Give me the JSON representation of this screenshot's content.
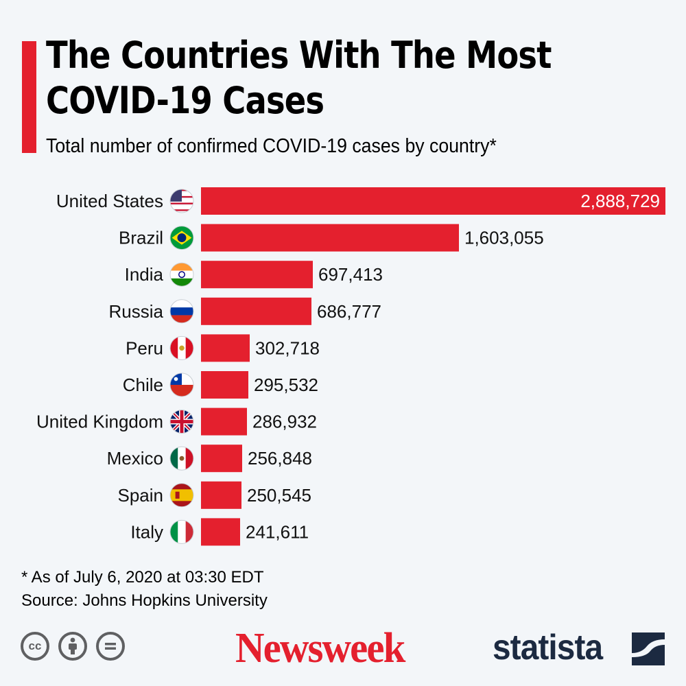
{
  "header": {
    "title": "The Countries With The Most\nCOVID-19 Cases",
    "subtitle": "Total number of confirmed COVID-19 cases by country*"
  },
  "colors": {
    "accent": "#e4202e",
    "background": "#f3f6f9",
    "navy": "#1c2a41"
  },
  "chart_data": {
    "type": "bar",
    "orientation": "horizontal",
    "title": "The Countries With The Most COVID-19 Cases",
    "subtitle": "Total number of confirmed COVID-19 cases by country*",
    "categories": [
      "United States",
      "Brazil",
      "India",
      "Russia",
      "Peru",
      "Chile",
      "United Kingdom",
      "Mexico",
      "Spain",
      "Italy"
    ],
    "values": [
      2888729,
      1603055,
      697413,
      686777,
      302718,
      295532,
      286932,
      256848,
      250545,
      241611
    ],
    "value_labels": [
      "2,888,729",
      "1,603,055",
      "697,413",
      "686,777",
      "302,718",
      "295,532",
      "286,932",
      "256,848",
      "250,545",
      "241,611"
    ],
    "flag_icons": [
      "flag-us-icon",
      "flag-brazil-icon",
      "flag-india-icon",
      "flag-russia-icon",
      "flag-peru-icon",
      "flag-chile-icon",
      "flag-uk-icon",
      "flag-mexico-icon",
      "flag-spain-icon",
      "flag-italy-icon"
    ],
    "bar_color": "#e4202e",
    "xlim": [
      0,
      2888729
    ],
    "grid": false,
    "legend": "none"
  },
  "footer": {
    "note": "* As of July 6, 2020 at 03:30 EDT",
    "source": "Source: Johns Hopkins University",
    "license_icons": [
      "cc-icon",
      "attribution-icon",
      "no-derivatives-icon"
    ],
    "brand_newsweek": "Newsweek",
    "brand_statista": "statista"
  }
}
